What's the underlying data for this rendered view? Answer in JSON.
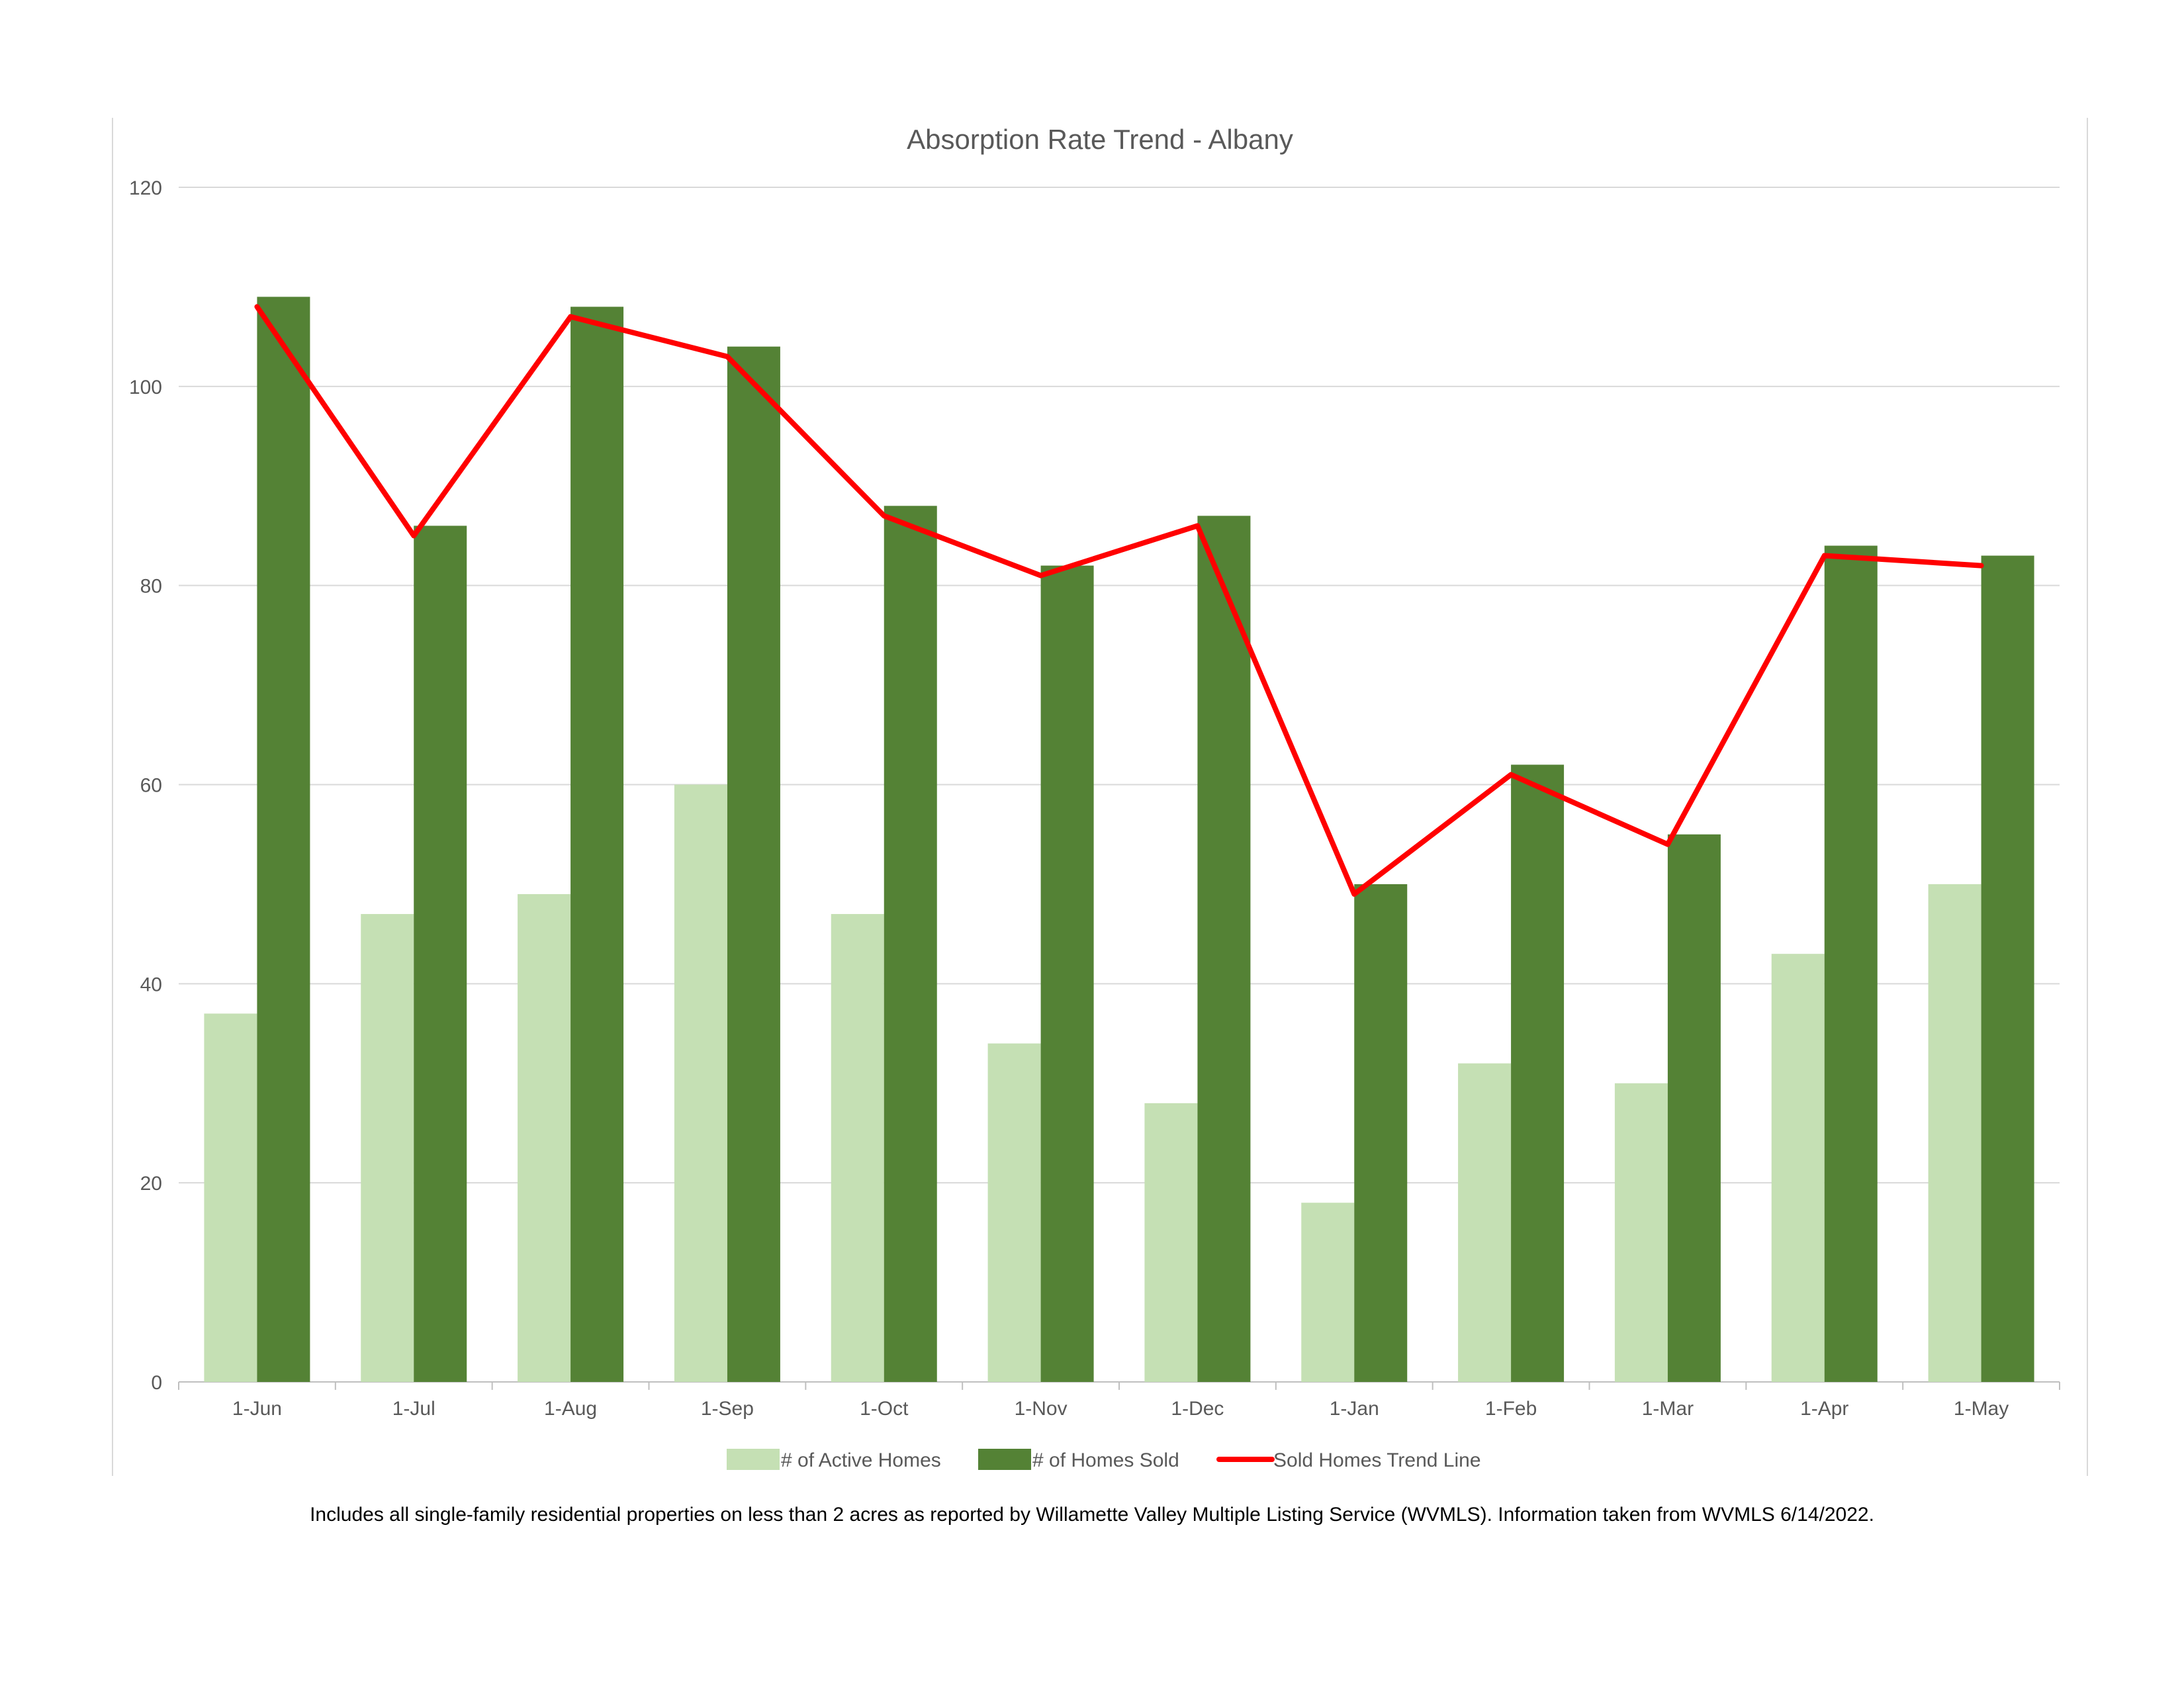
{
  "chart_data": {
    "type": "bar",
    "title": "Absorption Rate Trend - Albany",
    "categories": [
      "1-Jun",
      "1-Jul",
      "1-Aug",
      "1-Sep",
      "1-Oct",
      "1-Nov",
      "1-Dec",
      "1-Jan",
      "1-Feb",
      "1-Mar",
      "1-Apr",
      "1-May"
    ],
    "series": [
      {
        "name": "# of Active Homes",
        "type": "bar",
        "color": "#c5e0b4",
        "values": [
          37,
          47,
          49,
          60,
          47,
          34,
          28,
          18,
          32,
          30,
          43,
          50
        ]
      },
      {
        "name": "# of Homes Sold",
        "type": "bar",
        "color": "#548235",
        "values": [
          109,
          86,
          108,
          104,
          88,
          82,
          87,
          50,
          62,
          55,
          84,
          83
        ]
      },
      {
        "name": "Sold Homes Trend Line",
        "type": "line",
        "color": "#ff0000",
        "values": [
          108,
          85,
          107,
          103,
          87,
          81,
          86,
          49,
          61,
          54,
          83,
          82
        ]
      }
    ],
    "ylim": [
      0,
      120
    ],
    "yticks": [
      0,
      20,
      40,
      60,
      80,
      100,
      120
    ],
    "xlabel": "",
    "ylabel": "",
    "grid": true,
    "legend": "bottom"
  },
  "footnote": "Includes all single-family residential properties on less than 2 acres as reported by Willamette Valley Multiple Listing Service (WVMLS). Information taken from WVMLS 6/14/2022."
}
